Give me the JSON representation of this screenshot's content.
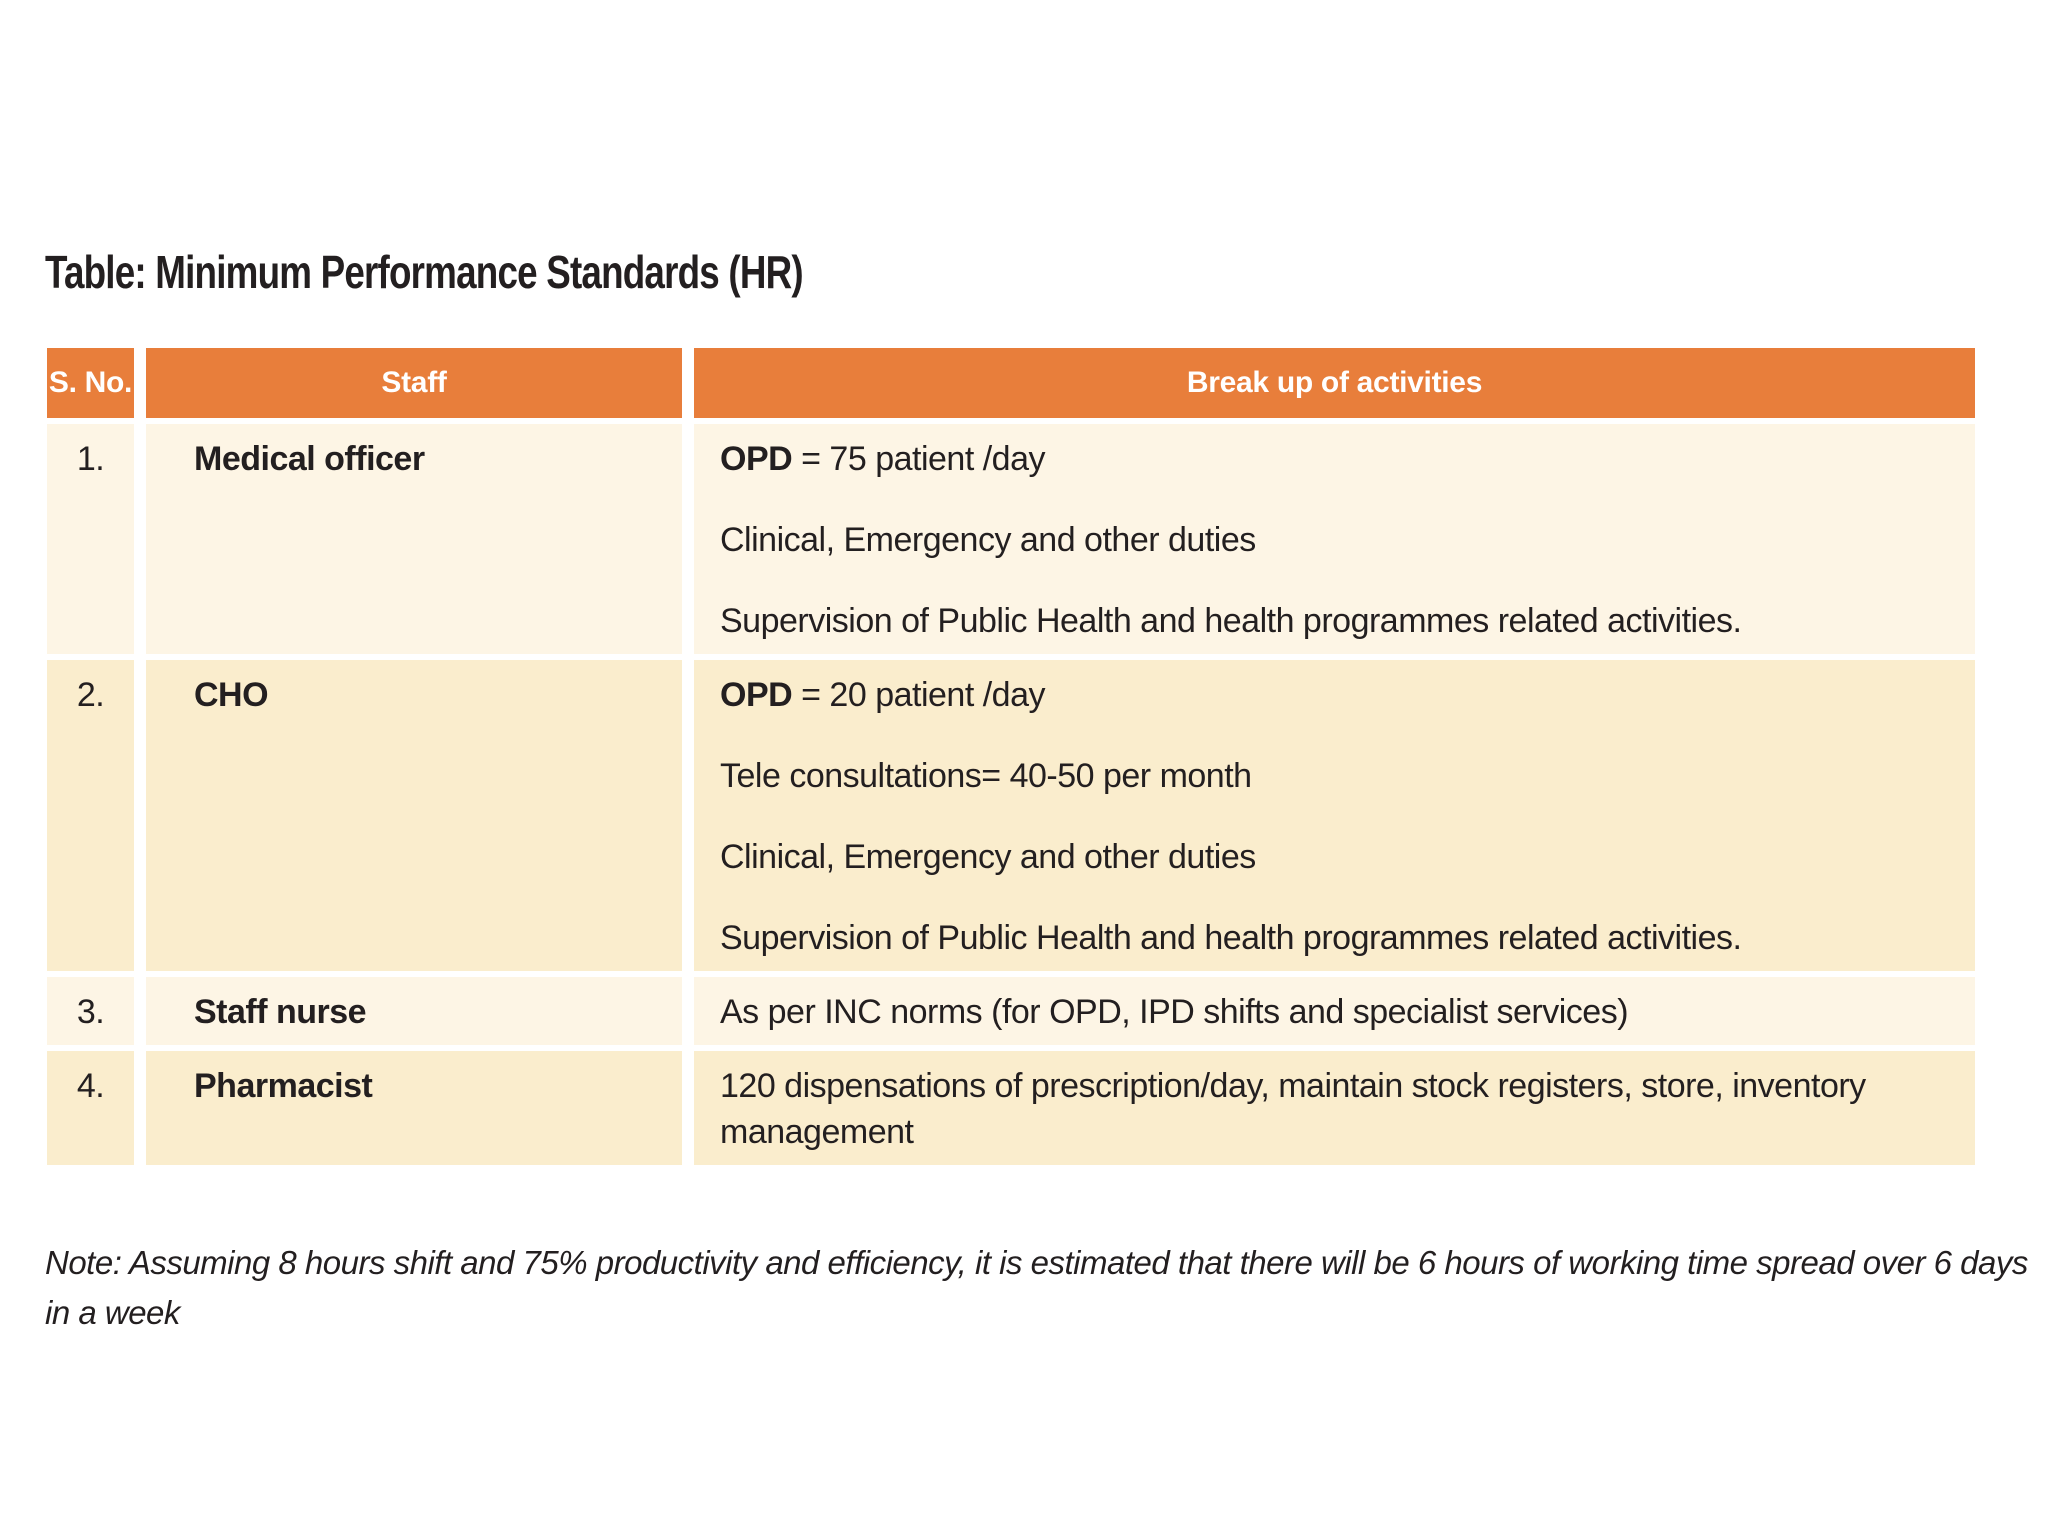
{
  "page": {
    "title": "Table: Minimum Performance Standards (HR)",
    "note": "Note: Assuming 8 hours shift and 75% productivity and efficiency, it is estimated that there will be 6 hours of working time spread over 6 days in a week"
  },
  "table": {
    "headers": [
      "S. No.",
      "Staff",
      "Break up of activities"
    ],
    "rows": [
      {
        "sno": "1.",
        "staff": "Medical officer",
        "activities": [
          {
            "bold": "OPD",
            "text": " = 75 patient /day"
          },
          {
            "bold": "",
            "text": "Clinical, Emergency and other duties"
          },
          {
            "bold": "",
            "text": "Supervision of Public Health and health programmes related activities."
          }
        ]
      },
      {
        "sno": "2.",
        "staff": "CHO",
        "activities": [
          {
            "bold": "OPD",
            "text": " = 20 patient /day"
          },
          {
            "bold": "",
            "text": "Tele consultations= 40-50 per month"
          },
          {
            "bold": "",
            "text": "Clinical, Emergency and other duties"
          },
          {
            "bold": "",
            "text": "Supervision of Public Health and health programmes related activities."
          }
        ]
      },
      {
        "sno": "3.",
        "staff": "Staff nurse",
        "activities": [
          {
            "bold": "",
            "text": "As per INC norms (for OPD, IPD shifts and specialist services)"
          }
        ]
      },
      {
        "sno": "4.",
        "staff": "Pharmacist",
        "activities": [
          {
            "bold": "",
            "text": "120 dispensations of prescription/day, maintain stock registers, store, inventory management"
          }
        ]
      }
    ]
  },
  "colors": {
    "header_bg": "#e87e3b",
    "row_light": "#fdf5e5",
    "row_dark": "#faedcd",
    "text": "#231f20",
    "header_text": "#ffffff"
  }
}
